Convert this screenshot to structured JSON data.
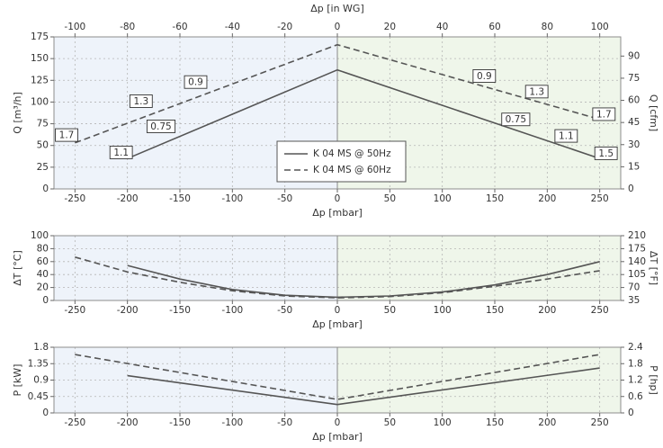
{
  "chart_data": [
    {
      "type": "line",
      "id": "flow",
      "xlabel": "Δp [mbar]",
      "x2label": "Δp [in WG]",
      "ylabel": "Q [m³/h]",
      "y2label": "Q [cfm]",
      "xlim": [
        -270,
        270
      ],
      "ylim": [
        0,
        175
      ],
      "y2lim": [
        0,
        103
      ],
      "xticks": [
        -250,
        -200,
        -150,
        -100,
        -50,
        0,
        50,
        100,
        150,
        200,
        250
      ],
      "x2ticks": [
        -100,
        -80,
        -60,
        -40,
        -20,
        0,
        20,
        40,
        60,
        80,
        100
      ],
      "yticks": [
        0,
        25,
        50,
        75,
        100,
        125,
        150,
        175
      ],
      "y2ticks": [
        0,
        15,
        30,
        45,
        60,
        75,
        90
      ],
      "series": [
        {
          "name": "K 04 MS @ 50Hz",
          "style": "solid",
          "x": [
            -200,
            0,
            250
          ],
          "y": [
            35,
            137,
            35
          ]
        },
        {
          "name": "K 04 MS @ 60Hz",
          "style": "dashed",
          "x": [
            -250,
            0,
            250
          ],
          "y": [
            53,
            166,
            80
          ]
        }
      ],
      "annotations": [
        {
          "text": "1.7",
          "x": -258,
          "y": 62
        },
        {
          "text": "1.3",
          "x": -187,
          "y": 101
        },
        {
          "text": "0.9",
          "x": -135,
          "y": 123
        },
        {
          "text": "1.1",
          "x": -206,
          "y": 42
        },
        {
          "text": "0.75",
          "x": -168,
          "y": 72
        },
        {
          "text": "0.9",
          "x": 140,
          "y": 130
        },
        {
          "text": "1.3",
          "x": 190,
          "y": 112
        },
        {
          "text": "1.7",
          "x": 254,
          "y": 86
        },
        {
          "text": "0.75",
          "x": 170,
          "y": 80
        },
        {
          "text": "1.1",
          "x": 218,
          "y": 61
        },
        {
          "text": "1.5",
          "x": 256,
          "y": 41
        }
      ],
      "legend": "center",
      "grid": true
    },
    {
      "type": "line",
      "id": "temp",
      "xlabel": "Δp [mbar]",
      "ylabel": "ΔT [°C]",
      "y2label": "ΔT [°F]",
      "xlim": [
        -270,
        270
      ],
      "ylim": [
        0,
        100
      ],
      "y2lim": [
        35,
        210
      ],
      "xticks": [
        -250,
        -200,
        -150,
        -100,
        -50,
        0,
        50,
        100,
        150,
        200,
        250
      ],
      "yticks": [
        0,
        20,
        40,
        60,
        80,
        100
      ],
      "y2ticks": [
        35,
        70,
        105,
        140,
        175,
        210
      ],
      "series": [
        {
          "name": "K 04 MS @ 50Hz",
          "style": "solid",
          "x": [
            -200,
            -150,
            -100,
            -50,
            0,
            50,
            100,
            150,
            200,
            250
          ],
          "y": [
            54,
            33,
            17,
            8,
            5,
            7,
            13,
            24,
            40,
            60
          ]
        },
        {
          "name": "K 04 MS @ 60Hz",
          "style": "dashed",
          "x": [
            -250,
            -200,
            -150,
            -100,
            -50,
            0,
            50,
            100,
            150,
            200,
            250
          ],
          "y": [
            67,
            44,
            28,
            15,
            7,
            4,
            6,
            12,
            22,
            33,
            46
          ]
        }
      ],
      "grid": true
    },
    {
      "type": "line",
      "id": "power",
      "xlabel": "Δp [mbar]",
      "ylabel": "P [kW]",
      "y2label": "P [hp]",
      "xlim": [
        -270,
        270
      ],
      "ylim": [
        0,
        1.8
      ],
      "y2lim": [
        0,
        2.4
      ],
      "xticks": [
        -250,
        -200,
        -150,
        -100,
        -50,
        0,
        50,
        100,
        150,
        200,
        250
      ],
      "yticks": [
        0,
        0.45,
        0.9,
        1.35,
        1.8
      ],
      "ytick_labels": [
        "0",
        "0.45",
        "0.9",
        "1.35",
        "1.8"
      ],
      "y2ticks": [
        0,
        0.6,
        1.2,
        1.8,
        2.4
      ],
      "y2tick_labels": [
        "0",
        "0.6",
        "1.2",
        "1.8",
        "2.4"
      ],
      "series": [
        {
          "name": "K 04 MS @ 50Hz",
          "style": "solid",
          "x": [
            -200,
            0,
            250
          ],
          "y": [
            1.02,
            0.23,
            1.23
          ]
        },
        {
          "name": "K 04 MS @ 60Hz",
          "style": "dashed",
          "x": [
            -250,
            0,
            250
          ],
          "y": [
            1.6,
            0.37,
            1.6
          ]
        }
      ],
      "grid": true
    }
  ],
  "colors": {
    "vacuum_bg": "#eef3fa",
    "pressure_bg": "#eff6ea",
    "grid": "#b5b5b5",
    "line": "#555555"
  }
}
